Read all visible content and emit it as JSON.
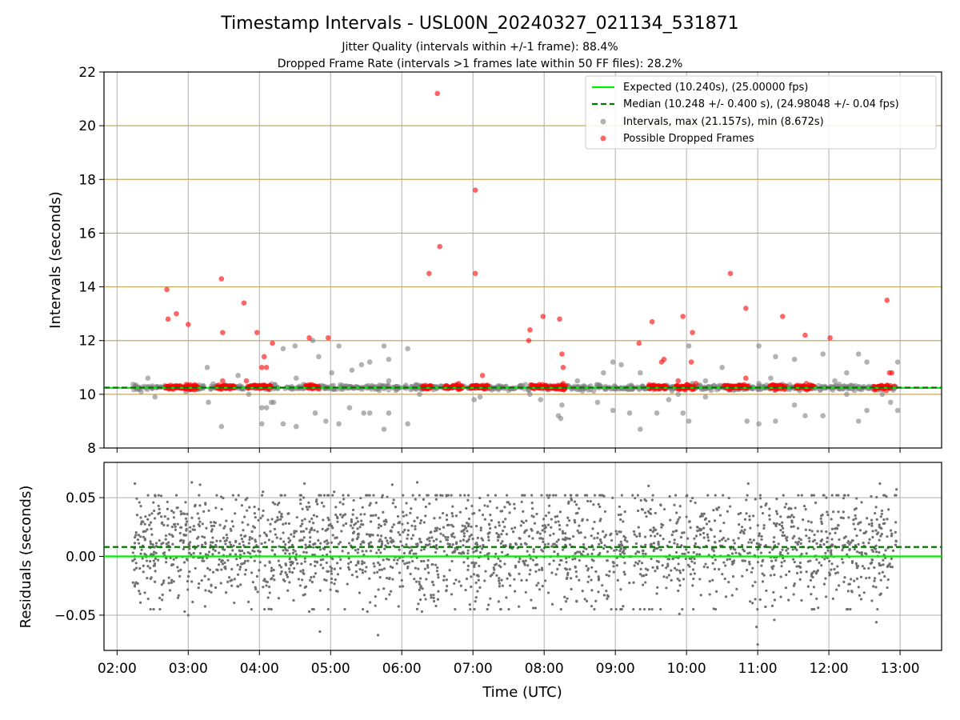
{
  "chart_data": {
    "type": "scatter",
    "title": "Timestamp Intervals - USL00N_20240327_021134_531871",
    "subtitles": [
      "Jitter Quality (intervals within +/-1 frame): 88.4%",
      "Dropped Frame Rate (intervals >1 frames late within 50 FF files): 28.2%"
    ],
    "xlabel": "Time (UTC)",
    "x_ticks": [
      "02:00",
      "03:00",
      "04:00",
      "05:00",
      "06:00",
      "07:00",
      "08:00",
      "09:00",
      "10:00",
      "11:00",
      "12:00",
      "13:00"
    ],
    "xlim": [
      "01:49",
      "13:35"
    ],
    "grid": true,
    "legend_position": "top-right",
    "colors": {
      "expected": "#00ee00",
      "median": "#007700",
      "intervals": "#808080",
      "dropped": "#ff0000",
      "hband": "#c9a85a",
      "grid": "#b0b0b0"
    },
    "top_panel": {
      "ylabel": "Intervals (seconds)",
      "ylim": [
        8,
        22
      ],
      "y_ticks": [
        "8",
        "10",
        "12",
        "14",
        "16",
        "18",
        "20",
        "22"
      ],
      "horizontal_bands": [
        10,
        12,
        14,
        16,
        18,
        20
      ],
      "expected": 10.24,
      "median": 10.248,
      "series": [
        {
          "name": "Expected (10.240s), (25.00000 fps)",
          "kind": "line",
          "y": 10.24
        },
        {
          "name": "Median (10.248 +/- 0.400 s), (24.98048 +/- 0.04 fps)",
          "kind": "dashed-line",
          "y": 10.248
        },
        {
          "name": "Intervals, max (21.157s), min (8.672s)",
          "kind": "scatter",
          "baseline": 10.25,
          "span": [
            "02:13",
            "12:57"
          ],
          "outliers": [
            [
              "02:26",
              10.6
            ],
            [
              "02:32",
              9.9
            ],
            [
              "02:58",
              10.1
            ],
            [
              "03:16",
              11.0
            ],
            [
              "03:17",
              9.7
            ],
            [
              "03:28",
              8.8
            ],
            [
              "03:42",
              10.7
            ],
            [
              "03:51",
              10.0
            ],
            [
              "04:02",
              9.5
            ],
            [
              "04:02",
              8.9
            ],
            [
              "04:06",
              9.5
            ],
            [
              "04:10",
              9.7
            ],
            [
              "04:12",
              9.7
            ],
            [
              "04:20",
              8.9
            ],
            [
              "04:20",
              11.7
            ],
            [
              "04:30",
              11.8
            ],
            [
              "04:31",
              10.6
            ],
            [
              "04:31",
              8.8
            ],
            [
              "04:45",
              12.0
            ],
            [
              "04:47",
              9.3
            ],
            [
              "04:50",
              11.4
            ],
            [
              "04:56",
              9.0
            ],
            [
              "05:01",
              10.8
            ],
            [
              "05:07",
              11.8
            ],
            [
              "05:07",
              8.9
            ],
            [
              "05:16",
              9.5
            ],
            [
              "05:18",
              10.9
            ],
            [
              "05:26",
              11.1
            ],
            [
              "05:28",
              9.3
            ],
            [
              "05:33",
              11.2
            ],
            [
              "05:33",
              9.3
            ],
            [
              "05:45",
              11.8
            ],
            [
              "05:45",
              8.7
            ],
            [
              "05:49",
              10.5
            ],
            [
              "05:49",
              9.3
            ],
            [
              "05:49",
              11.3
            ],
            [
              "06:05",
              11.7
            ],
            [
              "06:05",
              8.9
            ],
            [
              "06:15",
              10.0
            ],
            [
              "07:01",
              9.8
            ],
            [
              "07:06",
              9.9
            ],
            [
              "07:48",
              10.0
            ],
            [
              "07:57",
              9.8
            ],
            [
              "08:12",
              9.2
            ],
            [
              "08:14",
              9.1
            ],
            [
              "08:15",
              9.6
            ],
            [
              "08:28",
              10.5
            ],
            [
              "08:45",
              9.7
            ],
            [
              "08:50",
              10.8
            ],
            [
              "08:58",
              9.4
            ],
            [
              "08:58",
              11.2
            ],
            [
              "09:05",
              11.1
            ],
            [
              "09:12",
              9.3
            ],
            [
              "09:21",
              10.8
            ],
            [
              "09:21",
              8.7
            ],
            [
              "09:35",
              9.3
            ],
            [
              "09:45",
              9.8
            ],
            [
              "09:53",
              10.0
            ],
            [
              "09:57",
              9.3
            ],
            [
              "10:02",
              9.0
            ],
            [
              "10:02",
              11.8
            ],
            [
              "10:05",
              10.4
            ],
            [
              "10:16",
              10.5
            ],
            [
              "10:16",
              9.9
            ],
            [
              "10:30",
              11.0
            ],
            [
              "10:51",
              9.0
            ],
            [
              "11:01",
              11.8
            ],
            [
              "11:01",
              10.4
            ],
            [
              "11:01",
              8.9
            ],
            [
              "11:11",
              10.6
            ],
            [
              "11:15",
              11.4
            ],
            [
              "11:15",
              9.0
            ],
            [
              "11:31",
              11.3
            ],
            [
              "11:31",
              9.6
            ],
            [
              "11:40",
              9.2
            ],
            [
              "11:55",
              11.5
            ],
            [
              "11:55",
              9.2
            ],
            [
              "12:05",
              10.5
            ],
            [
              "12:15",
              10.8
            ],
            [
              "12:15",
              10.0
            ],
            [
              "12:25",
              11.5
            ],
            [
              "12:25",
              9.0
            ],
            [
              "12:32",
              11.2
            ],
            [
              "12:32",
              9.4
            ],
            [
              "12:45",
              10.0
            ],
            [
              "12:52",
              9.7
            ],
            [
              "12:58",
              11.2
            ],
            [
              "12:58",
              9.4
            ]
          ]
        },
        {
          "name": "Possible Dropped Frames",
          "kind": "scatter",
          "clusters": [
            [
              "02:41",
              "03:08"
            ],
            [
              "03:24",
              "03:39"
            ],
            [
              "03:50",
              "04:10"
            ],
            [
              "04:39",
              "04:50"
            ],
            [
              "06:17",
              "06:25"
            ],
            [
              "06:36",
              "06:51"
            ],
            [
              "06:58",
              "07:13"
            ],
            [
              "07:49",
              "08:18"
            ],
            [
              "09:28",
              "09:43"
            ],
            [
              "09:51",
              "10:06"
            ],
            [
              "10:32",
              "10:52"
            ],
            [
              "11:10",
              "11:23"
            ],
            [
              "11:32",
              "11:47"
            ],
            [
              "12:38",
              "12:52"
            ]
          ],
          "outliers": [
            [
              "02:42",
              13.9
            ],
            [
              "02:43",
              12.8
            ],
            [
              "02:50",
              13.0
            ],
            [
              "03:00",
              12.6
            ],
            [
              "03:04",
              10.3
            ],
            [
              "03:28",
              14.3
            ],
            [
              "03:29",
              12.3
            ],
            [
              "03:29",
              10.5
            ],
            [
              "03:38",
              10.3
            ],
            [
              "03:47",
              13.4
            ],
            [
              "03:49",
              10.5
            ],
            [
              "03:58",
              12.3
            ],
            [
              "04:02",
              11.0
            ],
            [
              "04:04",
              11.4
            ],
            [
              "04:06",
              11.0
            ],
            [
              "04:11",
              11.9
            ],
            [
              "04:42",
              12.1
            ],
            [
              "04:58",
              12.1
            ],
            [
              "06:23",
              14.5
            ],
            [
              "06:30",
              21.2
            ],
            [
              "06:32",
              15.5
            ],
            [
              "06:48",
              10.4
            ],
            [
              "07:02",
              17.6
            ],
            [
              "07:02",
              14.5
            ],
            [
              "07:08",
              10.7
            ],
            [
              "07:47",
              12.0
            ],
            [
              "07:48",
              12.4
            ],
            [
              "07:59",
              12.9
            ],
            [
              "08:13",
              12.8
            ],
            [
              "08:15",
              11.5
            ],
            [
              "08:16",
              11.0
            ],
            [
              "08:16",
              10.4
            ],
            [
              "09:20",
              11.9
            ],
            [
              "09:31",
              12.7
            ],
            [
              "09:39",
              11.2
            ],
            [
              "09:41",
              11.3
            ],
            [
              "09:53",
              10.5
            ],
            [
              "09:57",
              12.9
            ],
            [
              "10:04",
              11.2
            ],
            [
              "10:05",
              12.3
            ],
            [
              "10:08",
              10.4
            ],
            [
              "10:37",
              14.5
            ],
            [
              "10:50",
              13.2
            ],
            [
              "10:50",
              10.6
            ],
            [
              "11:21",
              12.9
            ],
            [
              "11:40",
              12.2
            ],
            [
              "11:41",
              10.4
            ],
            [
              "12:01",
              12.1
            ],
            [
              "12:49",
              13.5
            ],
            [
              "12:51",
              10.8
            ],
            [
              "12:53",
              10.8
            ],
            [
              "12:55",
              10.3
            ]
          ]
        }
      ]
    },
    "bottom_panel": {
      "ylabel": "Residuals (seconds)",
      "ylim": [
        -0.08,
        0.08
      ],
      "y_ticks": [
        "0.05",
        "0.00",
        "−0.05"
      ],
      "y_tick_values": [
        0.05,
        0.0,
        -0.05
      ],
      "expected_residual": 0.0,
      "median_residual": 0.008,
      "residual_spread": 0.025,
      "span": [
        "02:13",
        "12:57"
      ],
      "extremes": [
        [
          "02:15",
          0.062
        ],
        [
          "02:57",
          -0.047
        ],
        [
          "03:00",
          -0.05
        ],
        [
          "03:03",
          0.063
        ],
        [
          "03:10",
          0.061
        ],
        [
          "04:03",
          0.055
        ],
        [
          "04:38",
          0.062
        ],
        [
          "04:42",
          -0.047
        ],
        [
          "04:51",
          -0.064
        ],
        [
          "05:03",
          0.055
        ],
        [
          "05:31",
          -0.047
        ],
        [
          "05:40",
          -0.067
        ],
        [
          "05:52",
          0.061
        ],
        [
          "06:13",
          0.063
        ],
        [
          "06:17",
          -0.047
        ],
        [
          "09:28",
          0.06
        ],
        [
          "09:54",
          -0.049
        ],
        [
          "10:52",
          0.062
        ],
        [
          "10:59",
          -0.06
        ],
        [
          "11:00",
          -0.075
        ],
        [
          "11:14",
          -0.054
        ],
        [
          "12:40",
          -0.056
        ],
        [
          "12:43",
          0.062
        ],
        [
          "12:57",
          0.057
        ]
      ]
    }
  }
}
